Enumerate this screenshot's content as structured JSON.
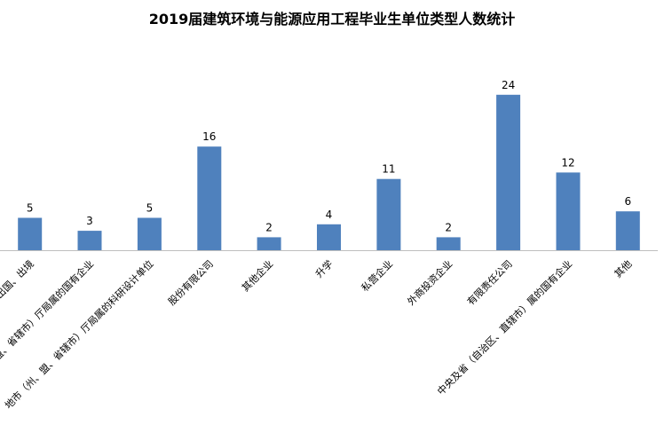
{
  "chart_data": {
    "type": "bar",
    "title": "2019届建筑环境与能源应用工程毕业生单位类型人数统计",
    "xlabel": "",
    "ylabel": "",
    "ylim": [
      0,
      26
    ],
    "grid": false,
    "legend": "none",
    "bar_color": "#4F81BD",
    "categories": [
      "出国、出境",
      "（州、盟、省辖市）厅局属的国有企业",
      "地市（州、盟、省辖市）厅局属的科研设计单位",
      "股份有限公司",
      "其他企业",
      "升学",
      "私营企业",
      "外商投资企业",
      "有限责任公司",
      "中央及省（自治区、直辖市）属的国有企业",
      "其他"
    ],
    "values": [
      5,
      3,
      5,
      16,
      2,
      4,
      11,
      2,
      24,
      12,
      6
    ]
  }
}
